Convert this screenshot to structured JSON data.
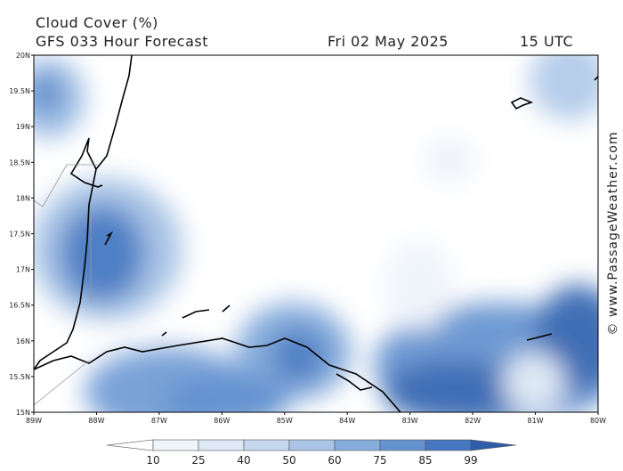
{
  "header": {
    "title": "Cloud Cover (%)",
    "subtitle": "GFS 033 Hour Forecast",
    "date": "Fri 02 May 2025",
    "time": "15 UTC"
  },
  "map": {
    "lat_labels": [
      "20N",
      "19.5N",
      "19N",
      "18.5N",
      "18N",
      "17.5N",
      "17N",
      "16.5N",
      "16N",
      "15.5N",
      "15N"
    ],
    "lon_labels": [
      "89W",
      "88W",
      "87W",
      "86W",
      "85W",
      "84W",
      "83W",
      "82W",
      "81W",
      "80W"
    ]
  },
  "legend": {
    "levels": [
      10,
      25,
      40,
      50,
      60,
      75,
      85,
      99
    ]
  },
  "credit": "© www.PassageWeather.com"
}
